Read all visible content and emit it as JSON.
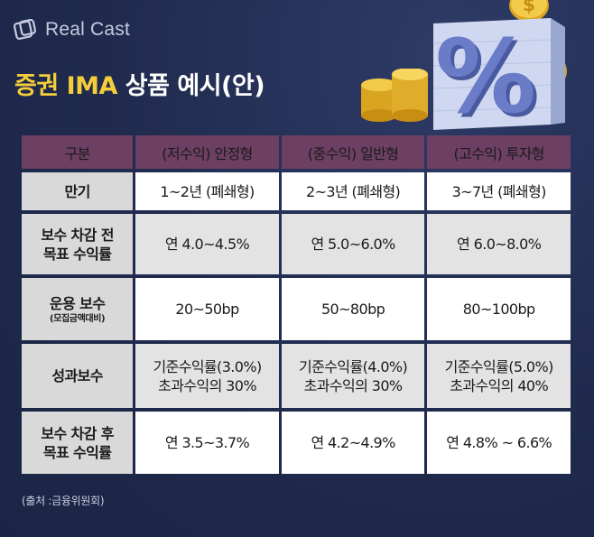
{
  "brand": {
    "logo_text": "Real Cast"
  },
  "title": {
    "highlight": "증권 IMA",
    "rest": " 상품 예시(안)"
  },
  "colors": {
    "header_bg": "#6c3f63",
    "title_highlight": "#f4cd3a",
    "background": "#1f2a4d"
  },
  "table": {
    "headers": [
      "구분",
      "(저수익) 안정형",
      "(중수익) 일반형",
      "(고수익) 투자형"
    ],
    "rows": [
      {
        "label": "만기",
        "sub": "",
        "cells": [
          "1~2년 (폐쇄형)",
          "2~3년 (폐쇄형)",
          "3~7년 (폐쇄형)"
        ]
      },
      {
        "label": "보수 차감 전\n목표 수익률",
        "sub": "",
        "cells": [
          "연 4.0~4.5%",
          "연 5.0~6.0%",
          "연 6.0~8.0%"
        ]
      },
      {
        "label": "운용 보수",
        "sub": "(모집금액대비)",
        "cells": [
          "20~50bp",
          "50~80bp",
          "80~100bp"
        ]
      },
      {
        "label": "성과보수",
        "sub": "",
        "cells": [
          "기준수익률(3.0%)\n초과수익의 30%",
          "기준수익률(4.0%)\n초과수익의 30%",
          "기준수익률(5.0%)\n초과수익의 40%"
        ]
      },
      {
        "label": "보수 차감 후\n목표 수익률",
        "sub": "",
        "cells": [
          "연 3.5~3.7%",
          "연 4.2~4.9%",
          "연 4.8% ~ 6.6%"
        ]
      }
    ]
  },
  "source": "(출처 :금융위원회)",
  "icons": [
    "logo-mark-icon",
    "coin-stack-icon",
    "percent-sign-icon",
    "coin-icon"
  ]
}
